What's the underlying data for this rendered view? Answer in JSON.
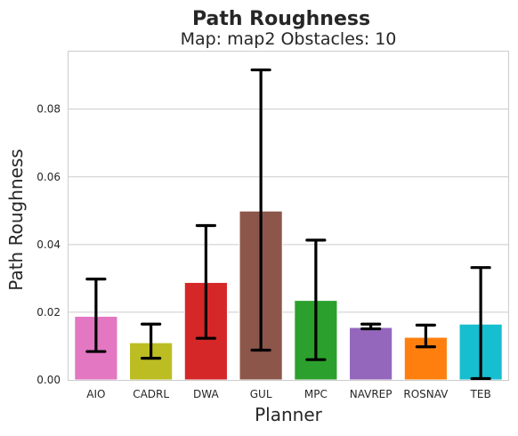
{
  "chart_data": {
    "type": "bar",
    "title": "Path Roughness",
    "subtitle": "Map: map2 Obstacles: 10",
    "xlabel": "Planner",
    "ylabel": "Path Roughness",
    "ylim": [
      0,
      0.097
    ],
    "yticks": [
      0.0,
      0.02,
      0.04,
      0.06,
      0.08
    ],
    "ytick_labels": [
      "0.00",
      "0.02",
      "0.04",
      "0.06",
      "0.08"
    ],
    "grid": "horizontal",
    "categories": [
      "AIO",
      "CADRL",
      "DWA",
      "GUL",
      "MPC",
      "NAVREP",
      "ROSNAV",
      "TEB"
    ],
    "values": [
      0.0188,
      0.011,
      0.0288,
      0.0499,
      0.0235,
      0.0155,
      0.0126,
      0.0165
    ],
    "error_low": [
      0.0084,
      0.0064,
      0.0123,
      0.0088,
      0.006,
      0.0151,
      0.0098,
      0.0004
    ],
    "error_high": [
      0.0298,
      0.0165,
      0.0456,
      0.0916,
      0.0413,
      0.0165,
      0.0162,
      0.0332
    ],
    "colors": [
      "#e377c2",
      "#bcbd22",
      "#d62728",
      "#8c564b",
      "#2ca02c",
      "#9467bd",
      "#ff7f0e",
      "#17becf"
    ]
  }
}
